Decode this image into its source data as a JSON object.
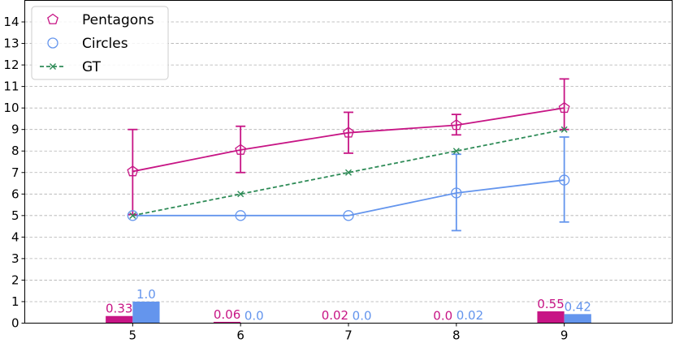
{
  "chart_data": {
    "type": "line",
    "title": "",
    "xlabel": "",
    "ylabel": "",
    "x": [
      5,
      6,
      7,
      8,
      9
    ],
    "xlim": [
      4,
      10
    ],
    "ylim": [
      0,
      15
    ],
    "x_ticks": [
      "5",
      "6",
      "7",
      "8",
      "9"
    ],
    "y_ticks": [
      "0",
      "1",
      "2",
      "3",
      "4",
      "5",
      "6",
      "7",
      "8",
      "9",
      "10",
      "11",
      "12",
      "13",
      "14"
    ],
    "grid": "horizontal dashed",
    "legend_position": "top-left",
    "series": [
      {
        "name": "Pentagons",
        "marker": "pentagon",
        "line_style": "solid",
        "color": "#c71585",
        "y": [
          7.05,
          8.05,
          8.85,
          9.2,
          10.0
        ],
        "error_low": [
          5.05,
          7.0,
          7.9,
          8.75,
          9.0
        ],
        "error_high": [
          9.0,
          9.15,
          9.8,
          9.7,
          11.35
        ]
      },
      {
        "name": "Circles",
        "marker": "circle",
        "line_style": "solid",
        "color": "#6495ed",
        "y": [
          5.0,
          5.0,
          5.0,
          6.05,
          6.65
        ],
        "error_low": [
          null,
          null,
          null,
          4.3,
          4.7
        ],
        "error_high": [
          null,
          null,
          null,
          7.85,
          8.65
        ]
      },
      {
        "name": "GT",
        "marker": "x",
        "line_style": "dashed",
        "color": "#2e8b57",
        "y": [
          5,
          6,
          7,
          8,
          9
        ]
      }
    ],
    "bars": [
      {
        "series": "Pentagons",
        "color": "#c71585",
        "values": [
          0.33,
          0.06,
          0.02,
          0.0,
          0.55
        ],
        "labels": [
          "0.33",
          "0.06",
          "0.02",
          "0.0",
          "0.55"
        ]
      },
      {
        "series": "Circles",
        "color": "#6495ed",
        "values": [
          1.0,
          0.0,
          0.0,
          0.02,
          0.42
        ],
        "labels": [
          "1.0",
          "0.0",
          "0.0",
          "0.02",
          "0.42"
        ]
      }
    ]
  }
}
